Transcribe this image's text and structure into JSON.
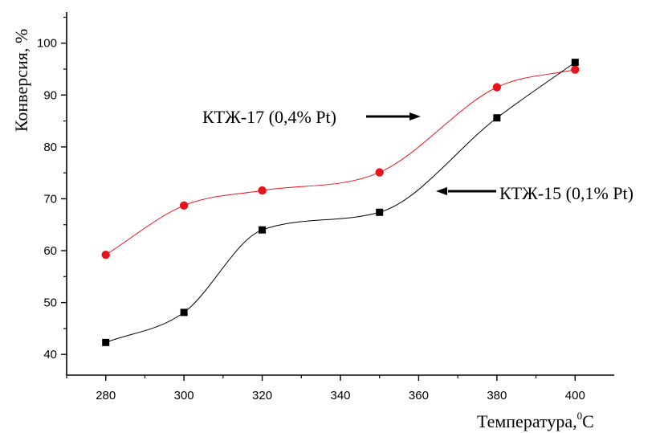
{
  "chart_data": {
    "type": "line",
    "xlabel": "Температура,",
    "xlabel_sup": "0",
    "xlabel_unit": "C",
    "ylabel": "Конверсия, %",
    "xlim": [
      270,
      410
    ],
    "ylim": [
      36,
      106
    ],
    "x_ticks": [
      280,
      300,
      320,
      340,
      360,
      380,
      400
    ],
    "y_ticks": [
      40,
      50,
      60,
      70,
      80,
      90,
      100
    ],
    "grid": false,
    "series": [
      {
        "key": "ktzh17",
        "color": "#e8141b",
        "marker": "circle",
        "x": [
          280,
          300,
          320,
          350,
          380,
          400
        ],
        "y": [
          59.2,
          68.7,
          71.6,
          75.1,
          91.5,
          94.9
        ]
      },
      {
        "key": "ktzh15",
        "color": "#000000",
        "marker": "square",
        "x": [
          280,
          300,
          320,
          350,
          380,
          400
        ],
        "y": [
          42.3,
          48.1,
          64.0,
          67.4,
          85.6,
          96.3
        ]
      }
    ],
    "annotations": [
      {
        "text": "КТЖ-17 (0,4% Pt)",
        "arrow": "right"
      },
      {
        "text": "КТЖ-15 (0,1% Pt)",
        "arrow": "left"
      }
    ]
  }
}
